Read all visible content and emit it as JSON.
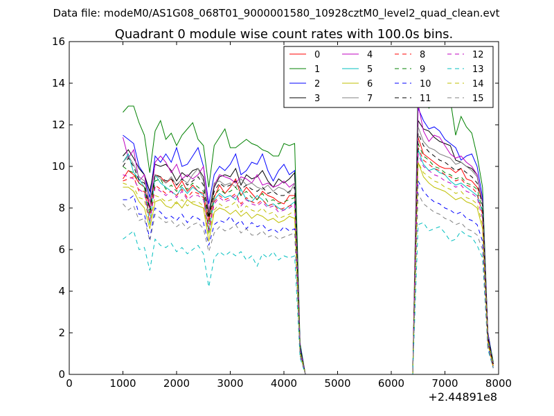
{
  "header": {
    "file_label": "Data file: modeM0/AS1G08_068T01_9000001580_10928cztM0_level2_quad_clean.evt"
  },
  "chart_data": {
    "type": "line",
    "title": "Quadrant 0 module wise count rates with 100.0s bins.",
    "xlabel": "",
    "ylabel": "",
    "x_offset_label": "+2.44891e8",
    "xlim": [
      0,
      8000
    ],
    "ylim": [
      0,
      16
    ],
    "x_ticks": [
      0,
      1000,
      2000,
      3000,
      4000,
      5000,
      6000,
      7000,
      8000
    ],
    "y_ticks": [
      0,
      2,
      4,
      6,
      8,
      10,
      12,
      14,
      16
    ],
    "legend_position": "top-right",
    "grid": false,
    "x": [
      1000,
      1100,
      1200,
      1300,
      1400,
      1500,
      1600,
      1700,
      1800,
      1900,
      2000,
      2100,
      2200,
      2300,
      2400,
      2500,
      2600,
      2700,
      2800,
      2900,
      3000,
      3100,
      3200,
      3300,
      3400,
      3500,
      3600,
      3700,
      3800,
      3900,
      4000,
      4100,
      4200,
      4300,
      4400,
      4500,
      4600,
      4700,
      4800,
      4900,
      5000,
      5100,
      5200,
      5300,
      5400,
      5500,
      5600,
      5700,
      5800,
      5900,
      6000,
      6100,
      6200,
      6300,
      6400,
      6500,
      6600,
      6700,
      6800,
      6900,
      7000,
      7100,
      7200,
      7300,
      7400,
      7500,
      7600,
      7700,
      7800,
      7900
    ],
    "series": [
      {
        "name": "0",
        "color": "#ff0000",
        "dash": false,
        "values": [
          9.4,
          9.8,
          9.6,
          9.2,
          9.0,
          8.0,
          9.6,
          9.5,
          9.2,
          9.4,
          8.9,
          9.3,
          8.8,
          9.1,
          8.8,
          8.7,
          7.4,
          8.5,
          9.1,
          8.7,
          9.0,
          9.4,
          8.6,
          9.0,
          8.7,
          8.4,
          8.8,
          8.6,
          8.5,
          8.3,
          8.2,
          8.6,
          8.6,
          1.2,
          0,
          0,
          0,
          0,
          0,
          0,
          0,
          0,
          0,
          0,
          0,
          0,
          0,
          0,
          0,
          0,
          0,
          0,
          0,
          0,
          0,
          11.4,
          10.6,
          10.4,
          10.2,
          10.0,
          9.9,
          9.9,
          9.7,
          9.9,
          9.4,
          9.3,
          9.0,
          8.4,
          2.0,
          0.5
        ]
      },
      {
        "name": "1",
        "color": "#008000",
        "dash": false,
        "values": [
          12.6,
          12.9,
          12.9,
          12.1,
          11.5,
          9.7,
          11.7,
          12.2,
          11.3,
          11.6,
          11.0,
          11.5,
          11.8,
          12.1,
          11.3,
          11.0,
          9.0,
          11.0,
          11.4,
          11.8,
          10.9,
          10.9,
          11.1,
          11.3,
          11.1,
          11.0,
          10.8,
          10.7,
          10.5,
          10.5,
          11.1,
          11.0,
          11.1,
          1.5,
          0,
          0,
          0,
          0,
          0,
          0,
          0,
          0,
          0,
          0,
          0,
          0,
          0,
          0,
          0,
          0,
          0,
          0,
          0,
          0,
          0,
          14.2,
          13.2,
          12.8,
          13.0,
          13.1,
          13.1,
          13.2,
          11.5,
          12.4,
          11.9,
          11.6,
          10.5,
          9.0,
          2.0,
          0.6
        ]
      },
      {
        "name": "2",
        "color": "#0000ff",
        "dash": false,
        "values": [
          11.5,
          11.3,
          11.1,
          10.0,
          9.6,
          8.5,
          10.5,
          10.2,
          10.6,
          10.2,
          10.9,
          10.0,
          10.1,
          10.5,
          10.9,
          10.0,
          8.2,
          9.6,
          10.0,
          9.8,
          10.1,
          10.6,
          9.6,
          9.8,
          10.2,
          10.1,
          10.6,
          9.8,
          9.3,
          9.8,
          10.1,
          9.6,
          9.8,
          1.4,
          0,
          0,
          0,
          0,
          0,
          0,
          0,
          0,
          0,
          0,
          0,
          0,
          0,
          0,
          0,
          0,
          0,
          0,
          0,
          0,
          0,
          12.8,
          12.2,
          11.8,
          11.9,
          11.7,
          11.3,
          11.1,
          10.9,
          10.3,
          10.5,
          10.6,
          10.0,
          8.5,
          2.0,
          0.5
        ]
      },
      {
        "name": "3",
        "color": "#000000",
        "dash": false,
        "values": [
          10.5,
          10.8,
          10.4,
          9.9,
          9.6,
          8.8,
          10.1,
          10.0,
          10.1,
          9.8,
          9.3,
          9.7,
          9.5,
          9.8,
          9.9,
          9.5,
          7.6,
          9.0,
          9.5,
          9.6,
          9.5,
          9.9,
          9.1,
          9.6,
          9.4,
          9.5,
          9.8,
          9.3,
          9.0,
          9.4,
          9.2,
          9.4,
          9.7,
          1.3,
          0,
          0,
          0,
          0,
          0,
          0,
          0,
          0,
          0,
          0,
          0,
          0,
          0,
          0,
          0,
          0,
          0,
          0,
          0,
          0,
          0,
          12.2,
          11.8,
          11.7,
          11.4,
          11.2,
          11.1,
          11.0,
          10.3,
          10.2,
          10.0,
          9.9,
          9.6,
          8.2,
          1.8,
          0.5
        ]
      },
      {
        "name": "4",
        "color": "#bf00bf",
        "dash": false,
        "values": [
          11.4,
          10.4,
          10.8,
          9.3,
          9.6,
          8.0,
          10.2,
          10.5,
          10.2,
          9.7,
          10.1,
          9.4,
          9.6,
          9.4,
          9.6,
          10.0,
          7.9,
          9.1,
          9.6,
          9.5,
          9.4,
          9.2,
          9.5,
          9.4,
          9.2,
          9.6,
          9.1,
          9.2,
          9.0,
          9.1,
          9.3,
          9.0,
          9.2,
          1.2,
          0,
          0,
          0,
          0,
          0,
          0,
          0,
          0,
          0,
          0,
          0,
          0,
          0,
          0,
          0,
          0,
          0,
          0,
          0,
          0,
          0,
          13.0,
          11.7,
          11.2,
          11.5,
          11.4,
          11.0,
          10.6,
          10.4,
          10.5,
          10.2,
          10.0,
          9.6,
          8.3,
          1.9,
          0.4
        ]
      },
      {
        "name": "5",
        "color": "#00bfbf",
        "dash": false,
        "values": [
          10.2,
          10.6,
          9.7,
          9.4,
          9.0,
          7.2,
          9.6,
          9.2,
          9.0,
          8.8,
          8.6,
          9.0,
          8.7,
          9.0,
          8.8,
          8.6,
          6.8,
          8.4,
          8.7,
          8.5,
          8.6,
          8.4,
          8.9,
          8.4,
          8.3,
          8.6,
          8.4,
          8.1,
          8.2,
          8.0,
          7.9,
          8.1,
          8.3,
          1.1,
          0,
          0,
          0,
          0,
          0,
          0,
          0,
          0,
          0,
          0,
          0,
          0,
          0,
          0,
          0,
          0,
          0,
          0,
          0,
          0,
          0,
          10.8,
          10.1,
          9.8,
          9.9,
          9.7,
          9.6,
          9.3,
          9.1,
          9.2,
          9.0,
          8.8,
          8.6,
          7.8,
          1.6,
          0.4
        ]
      },
      {
        "name": "6",
        "color": "#bfbf00",
        "dash": false,
        "values": [
          9.0,
          9.0,
          8.8,
          8.3,
          8.0,
          7.0,
          8.3,
          8.4,
          8.1,
          8.0,
          8.3,
          8.0,
          8.4,
          8.2,
          8.1,
          8.0,
          6.4,
          7.8,
          8.0,
          7.9,
          7.7,
          7.9,
          7.6,
          7.8,
          7.5,
          7.7,
          7.6,
          7.4,
          7.5,
          7.3,
          7.4,
          7.6,
          7.5,
          1.0,
          0,
          0,
          0,
          0,
          0,
          0,
          0,
          0,
          0,
          0,
          0,
          0,
          0,
          0,
          0,
          0,
          0,
          0,
          0,
          0,
          0,
          10.2,
          9.5,
          9.2,
          9.0,
          8.9,
          8.8,
          8.6,
          8.4,
          8.5,
          8.3,
          8.2,
          8.0,
          7.0,
          1.5,
          0.3
        ]
      },
      {
        "name": "7",
        "color": "#808080",
        "dash": false,
        "values": [
          10.2,
          10.5,
          10.1,
          9.5,
          9.3,
          8.3,
          9.6,
          9.4,
          9.2,
          9.5,
          9.1,
          9.4,
          9.2,
          9.6,
          9.9,
          9.3,
          7.8,
          9.2,
          9.3,
          9.1,
          9.2,
          9.0,
          9.4,
          9.1,
          9.2,
          9.0,
          8.9,
          9.1,
          8.8,
          9.0,
          8.9,
          8.7,
          9.2,
          1.2,
          0,
          0,
          0,
          0,
          0,
          0,
          0,
          0,
          0,
          0,
          0,
          0,
          0,
          0,
          0,
          0,
          0,
          0,
          0,
          0,
          0,
          11.9,
          11.2,
          10.9,
          10.8,
          10.6,
          10.5,
          10.4,
          10.1,
          10.2,
          10.0,
          9.8,
          9.5,
          8.2,
          1.8,
          0.5
        ]
      },
      {
        "name": "8",
        "color": "#ff0000",
        "dash": true,
        "values": [
          9.3,
          9.4,
          9.5,
          8.8,
          8.8,
          7.6,
          9.1,
          8.9,
          8.7,
          8.8,
          8.6,
          8.9,
          8.5,
          8.8,
          8.7,
          8.5,
          7.0,
          8.3,
          8.6,
          8.4,
          8.5,
          8.7,
          8.2,
          8.5,
          8.3,
          8.2,
          8.4,
          8.1,
          8.2,
          7.9,
          8.0,
          8.1,
          8.2,
          1.1,
          0,
          0,
          0,
          0,
          0,
          0,
          0,
          0,
          0,
          0,
          0,
          0,
          0,
          0,
          0,
          0,
          0,
          0,
          0,
          0,
          0,
          10.9,
          10.3,
          10.1,
          9.9,
          9.8,
          9.6,
          9.5,
          9.3,
          9.4,
          9.1,
          9.0,
          8.7,
          7.7,
          1.7,
          0.4
        ]
      },
      {
        "name": "9",
        "color": "#008000",
        "dash": true,
        "values": [
          10.0,
          9.8,
          9.7,
          9.2,
          9.0,
          7.7,
          9.3,
          9.4,
          8.9,
          9.1,
          8.8,
          9.1,
          8.9,
          9.2,
          9.0,
          8.8,
          7.2,
          8.6,
          8.9,
          8.7,
          8.8,
          9.0,
          8.6,
          8.8,
          8.5,
          8.4,
          8.7,
          8.3,
          8.4,
          8.2,
          8.3,
          8.4,
          8.5,
          1.2,
          0,
          0,
          0,
          0,
          0,
          0,
          0,
          0,
          0,
          0,
          0,
          0,
          0,
          0,
          0,
          0,
          0,
          0,
          0,
          0,
          0,
          11.1,
          10.5,
          10.3,
          10.0,
          9.9,
          9.7,
          9.6,
          9.4,
          9.5,
          9.2,
          9.1,
          8.9,
          7.9,
          1.8,
          0.4
        ]
      },
      {
        "name": "10",
        "color": "#0000ff",
        "dash": true,
        "values": [
          8.4,
          8.4,
          8.6,
          7.7,
          7.7,
          6.5,
          8.0,
          7.8,
          7.5,
          7.6,
          7.4,
          7.7,
          7.3,
          7.6,
          7.5,
          7.3,
          6.2,
          7.2,
          7.4,
          7.3,
          7.6,
          7.2,
          7.4,
          7.0,
          7.3,
          7.1,
          7.2,
          6.9,
          7.0,
          6.8,
          7.1,
          6.9,
          7.0,
          1.0,
          0,
          0,
          0,
          0,
          0,
          0,
          0,
          0,
          0,
          0,
          0,
          0,
          0,
          0,
          0,
          0,
          0,
          0,
          0,
          0,
          0,
          9.3,
          8.8,
          8.5,
          8.3,
          8.2,
          8.0,
          7.9,
          7.7,
          7.8,
          7.5,
          7.4,
          7.2,
          6.4,
          1.4,
          0.3
        ]
      },
      {
        "name": "11",
        "color": "#000000",
        "dash": true,
        "values": [
          10.0,
          10.4,
          10.0,
          9.3,
          9.2,
          7.9,
          9.6,
          9.5,
          9.3,
          9.4,
          9.1,
          9.4,
          9.1,
          9.3,
          9.5,
          9.1,
          7.5,
          8.8,
          9.2,
          9.0,
          9.1,
          9.3,
          8.9,
          9.1,
          8.9,
          8.8,
          9.0,
          8.7,
          8.8,
          8.6,
          8.6,
          8.8,
          9.0,
          1.2,
          0,
          0,
          0,
          0,
          0,
          0,
          0,
          0,
          0,
          0,
          0,
          0,
          0,
          0,
          0,
          0,
          0,
          0,
          0,
          0,
          0,
          11.6,
          11.0,
          10.7,
          10.5,
          10.3,
          10.2,
          10.0,
          9.8,
          9.9,
          9.7,
          9.5,
          9.2,
          8.1,
          1.8,
          0.5
        ]
      },
      {
        "name": "12",
        "color": "#bf00bf",
        "dash": true,
        "values": [
          9.6,
          9.5,
          9.4,
          8.9,
          8.7,
          7.3,
          9.0,
          8.8,
          8.6,
          8.8,
          8.5,
          8.8,
          8.4,
          8.6,
          8.6,
          8.4,
          6.9,
          8.2,
          8.5,
          8.3,
          8.4,
          8.6,
          8.1,
          8.4,
          8.2,
          8.1,
          8.3,
          8.0,
          8.1,
          7.8,
          7.9,
          8.0,
          8.2,
          1.1,
          0,
          0,
          0,
          0,
          0,
          0,
          0,
          0,
          0,
          0,
          0,
          0,
          0,
          0,
          0,
          0,
          0,
          0,
          0,
          0,
          0,
          10.6,
          10.0,
          9.8,
          9.6,
          9.5,
          9.3,
          9.2,
          9.0,
          9.1,
          8.8,
          8.7,
          8.5,
          7.5,
          1.6,
          0.4
        ]
      },
      {
        "name": "13",
        "color": "#00bfbf",
        "dash": true,
        "values": [
          6.5,
          6.7,
          6.9,
          6.0,
          6.1,
          5.0,
          6.5,
          6.2,
          6.1,
          6.3,
          5.9,
          6.1,
          5.8,
          6.0,
          6.2,
          5.8,
          4.2,
          5.6,
          5.9,
          5.7,
          5.9,
          5.7,
          5.9,
          5.5,
          5.7,
          5.2,
          5.8,
          5.6,
          5.9,
          5.5,
          5.7,
          5.6,
          5.7,
          0.8,
          0,
          0,
          0,
          0,
          0,
          0,
          0,
          0,
          0,
          0,
          0,
          0,
          0,
          0,
          0,
          0,
          0,
          0,
          0,
          0,
          0,
          7.2,
          7.3,
          6.9,
          7.0,
          7.1,
          6.8,
          6.4,
          6.5,
          6.9,
          6.7,
          6.6,
          6.2,
          5.6,
          1.2,
          0.3
        ]
      },
      {
        "name": "14",
        "color": "#bfbf00",
        "dash": true,
        "values": [
          9.2,
          9.1,
          9.0,
          8.5,
          8.4,
          7.2,
          8.6,
          8.5,
          8.3,
          8.4,
          8.2,
          8.4,
          8.1,
          8.3,
          8.3,
          8.1,
          6.7,
          7.9,
          8.2,
          8.0,
          8.1,
          8.3,
          7.8,
          8.1,
          7.9,
          7.8,
          8.0,
          7.7,
          7.8,
          7.5,
          7.6,
          7.7,
          7.9,
          1.1,
          0,
          0,
          0,
          0,
          0,
          0,
          0,
          0,
          0,
          0,
          0,
          0,
          0,
          0,
          0,
          0,
          0,
          0,
          0,
          0,
          0,
          10.2,
          9.7,
          9.5,
          9.3,
          9.2,
          9.0,
          8.9,
          8.7,
          8.8,
          8.5,
          8.4,
          8.2,
          7.2,
          1.6,
          0.4
        ]
      },
      {
        "name": "15",
        "color": "#808080",
        "dash": true,
        "values": [
          8.2,
          7.9,
          8.1,
          7.4,
          7.5,
          6.4,
          7.7,
          7.5,
          7.3,
          7.4,
          7.1,
          7.3,
          7.0,
          7.2,
          7.3,
          7.0,
          5.9,
          6.8,
          7.1,
          6.9,
          7.0,
          7.2,
          6.8,
          7.0,
          6.7,
          6.7,
          6.9,
          6.6,
          6.7,
          6.5,
          6.6,
          6.7,
          6.8,
          0.9,
          0,
          0,
          0,
          0,
          0,
          0,
          0,
          0,
          0,
          0,
          0,
          0,
          0,
          0,
          0,
          0,
          0,
          0,
          0,
          0,
          0,
          8.7,
          8.2,
          8.0,
          7.8,
          7.7,
          7.5,
          7.4,
          7.2,
          7.3,
          7.0,
          6.9,
          6.7,
          6.0,
          1.3,
          0.3
        ]
      }
    ]
  }
}
